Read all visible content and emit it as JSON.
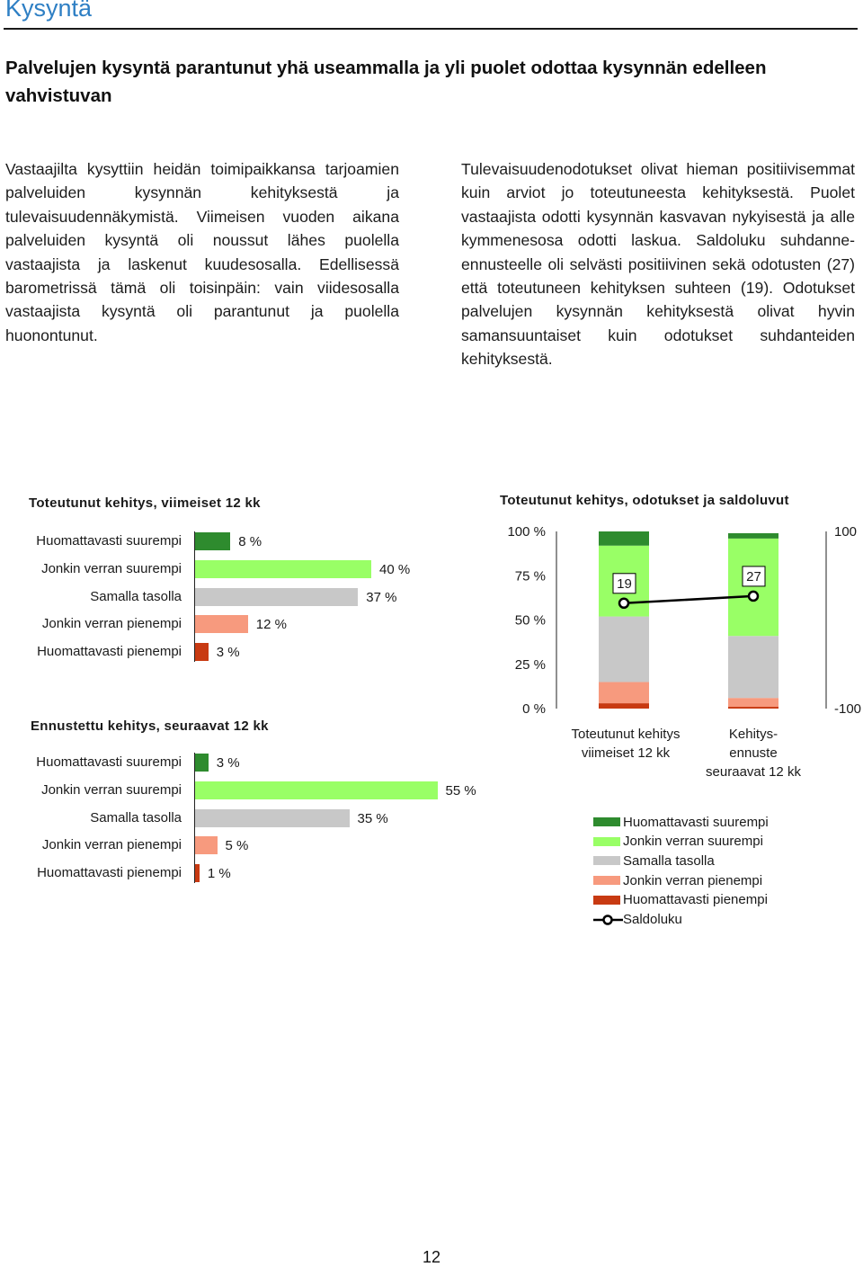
{
  "page": {
    "section_title": "Kysyntä",
    "headline": "Palvelujen kysyntä parantunut yhä useammalla ja yli puolet odottaa kysynnän edelleen vahvistuvan",
    "paragraph_left": "Vastaajilta kysyttiin heidän toimipaikkansa tarjoamien palveluiden kysynnän kehityksestä ja tulevaisuudennäkymistä. Viimeisen vuoden aikana palveluiden kysyntä oli noussut lähes puolella vastaajista ja laskenut kuudesosalla. Edellisessä barometrissä tämä oli toisinpäin: vain viidesosalla vastaajista kysyntä oli parantunut ja puolella huonontunut.",
    "paragraph_right": "Tulevaisuudenodotukset olivat hieman positiivisemmat kuin arviot jo toteutuneesta kehityksestä. Puolet vastaajista odotti kysynnän kasvavan nykyisestä ja alle kymmenesosa odotti laskua. Saldoluku suhdanne-ennusteelle oli selvästi positiivinen sekä odotusten (27) että toteutuneen kehityksen suhteen (19). Odotukset palvelujen kysynnän kehityksestä olivat hyvin samansuuntaiset kuin odotukset suhdanteiden kehityksestä.",
    "page_number": "12"
  },
  "colors": {
    "huomattavasti_suurempi": "#2e8b2e",
    "jonkin_verran_suurempi": "#99ff66",
    "samalla_tasolla": "#c8c8c8",
    "jonkin_verran_pienempi": "#f79a7e",
    "huomattavasti_pienempi": "#c83a12",
    "saldoluku": "#000000"
  },
  "chart_data": [
    {
      "type": "bar",
      "orientation": "horizontal",
      "title": "Toteutunut kehitys, viimeiset 12 kk",
      "categories": [
        "Huomattavasti suurempi",
        "Jonkin verran suurempi",
        "Samalla tasolla",
        "Jonkin verran pienempi",
        "Huomattavasti pienempi"
      ],
      "values": [
        8,
        40,
        37,
        12,
        3
      ],
      "value_labels": [
        "8 %",
        "40 %",
        "37 %",
        "12 %",
        "3 %"
      ],
      "colors": [
        "#2e8b2e",
        "#99ff66",
        "#c8c8c8",
        "#f79a7e",
        "#c83a12"
      ],
      "unit": "%"
    },
    {
      "type": "bar",
      "orientation": "horizontal",
      "title": "Ennustettu kehitys, seuraavat 12 kk",
      "categories": [
        "Huomattavasti suurempi",
        "Jonkin verran suurempi",
        "Samalla tasolla",
        "Jonkin verran pienempi",
        "Huomattavasti pienempi"
      ],
      "values": [
        3,
        55,
        35,
        5,
        1
      ],
      "value_labels": [
        "3 %",
        "55 %",
        "35 %",
        "5 %",
        "1 %"
      ],
      "colors": [
        "#2e8b2e",
        "#99ff66",
        "#c8c8c8",
        "#f79a7e",
        "#c83a12"
      ],
      "unit": "%"
    },
    {
      "type": "bar",
      "stacked": true,
      "title": "Toteutunut kehitys, odotukset ja saldoluvut",
      "categories": [
        [
          "Toteutunut kehitys",
          "viimeiset 12 kk"
        ],
        [
          "Kehitys-",
          "ennuste",
          "seuraavat 12 kk"
        ]
      ],
      "series": [
        {
          "name": "Huomattavasti pienempi",
          "values": [
            3,
            1
          ],
          "color": "#c83a12"
        },
        {
          "name": "Jonkin verran pienempi",
          "values": [
            12,
            5
          ],
          "color": "#f79a7e"
        },
        {
          "name": "Samalla tasolla",
          "values": [
            37,
            35
          ],
          "color": "#c8c8c8"
        },
        {
          "name": "Jonkin verran suurempi",
          "values": [
            40,
            55
          ],
          "color": "#99ff66"
        },
        {
          "name": "Huomattavasti suurempi",
          "values": [
            8,
            3
          ],
          "color": "#2e8b2e"
        }
      ],
      "line_series": {
        "name": "Saldoluku",
        "values": [
          19,
          27
        ],
        "labels": [
          "19",
          "27"
        ],
        "axis": "right"
      },
      "y_left": {
        "range": [
          0,
          100
        ],
        "ticks": [
          "0 %",
          "25 %",
          "50 %",
          "75 %",
          "100 %"
        ]
      },
      "y_right": {
        "range": [
          -100,
          100
        ],
        "ticks": [
          "-100",
          "100"
        ]
      },
      "legend": {
        "position": "bottom",
        "entries": [
          "Huomattavasti suurempi",
          "Jonkin verran suurempi",
          "Samalla tasolla",
          "Jonkin verran pienempi",
          "Huomattavasti pienempi",
          "Saldoluku"
        ]
      }
    }
  ]
}
